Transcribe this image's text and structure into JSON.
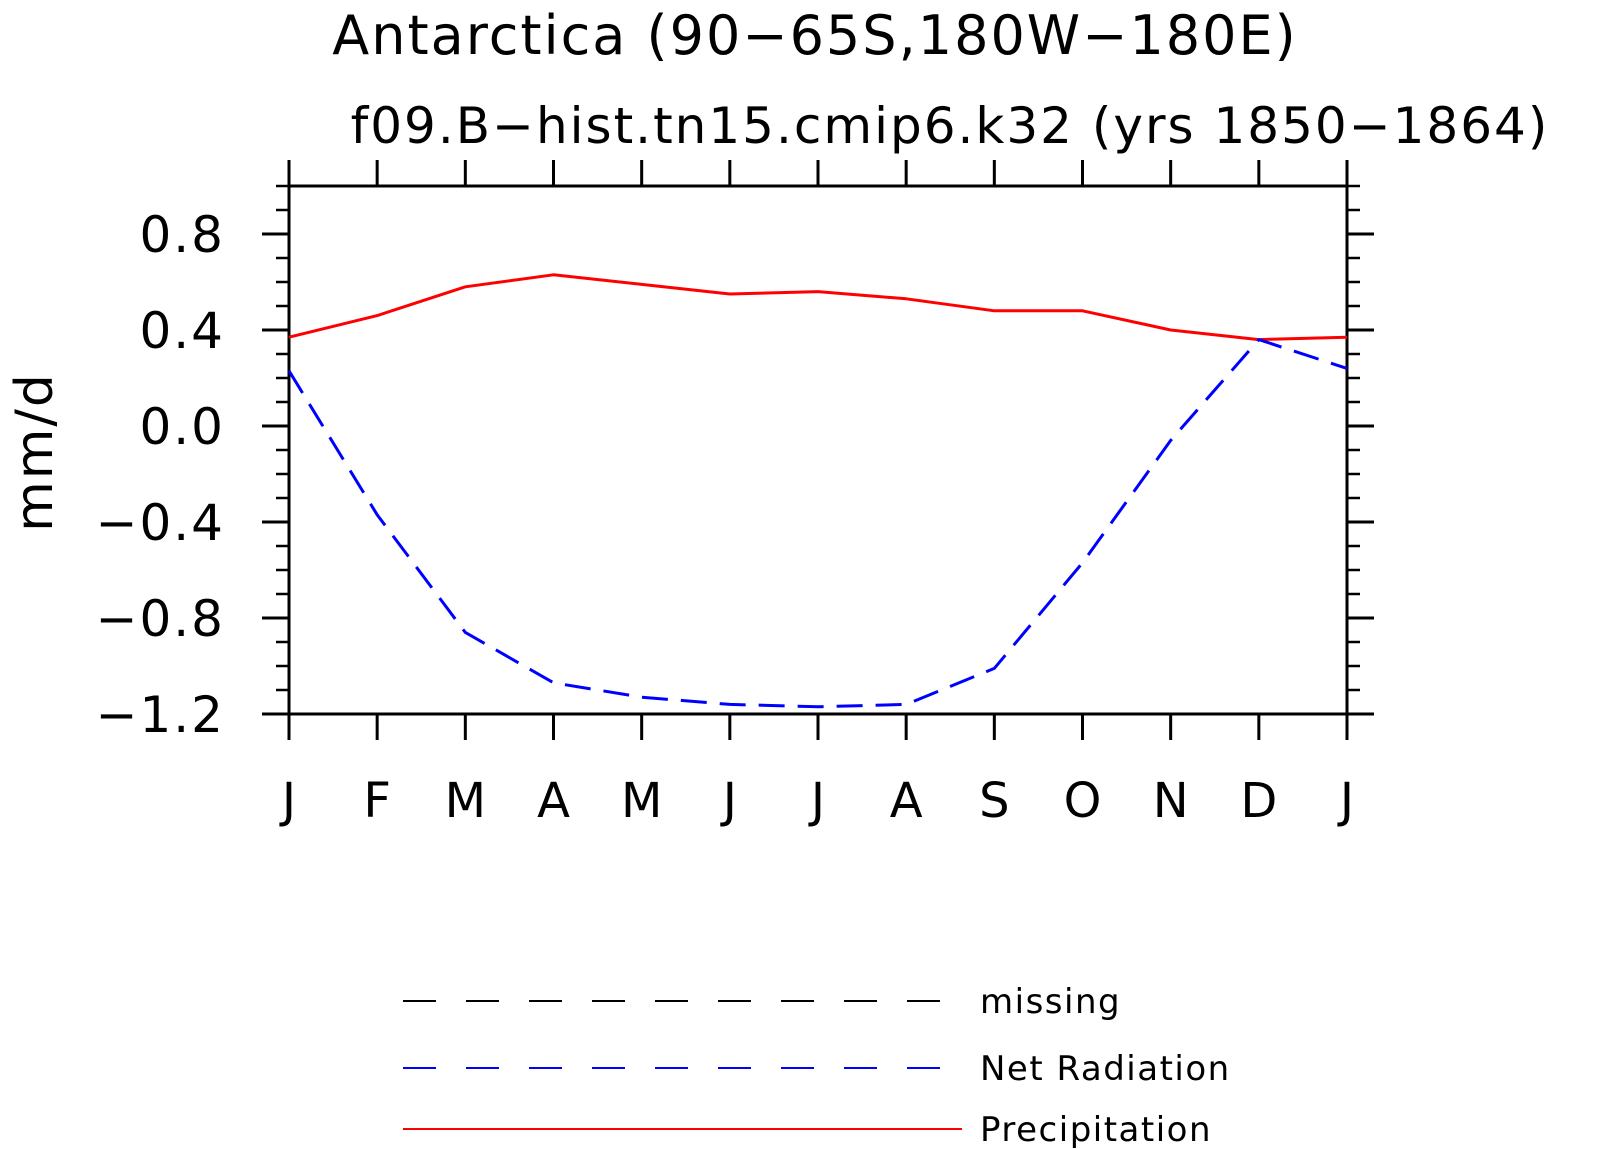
{
  "chart_data": {
    "type": "line",
    "title": "Antarctica (90−65S,180W−180E)",
    "subtitle": "f09.B−hist.tn15.cmip6.k32 (yrs 1850−1864)",
    "ylabel": "mm/d",
    "xlabel": "",
    "categories": [
      "J",
      "F",
      "M",
      "A",
      "M",
      "J",
      "J",
      "A",
      "S",
      "O",
      "N",
      "D",
      "J"
    ],
    "ylim": [
      -1.2,
      1.0
    ],
    "yticks": [
      0.8,
      0.4,
      0.0,
      -0.4,
      -0.8,
      -1.2
    ],
    "ytick_labels": [
      "0.8",
      "0.4",
      "0.0",
      "−0.4",
      "−0.8",
      "−1.2"
    ],
    "yminor_step": 0.1,
    "grid": false,
    "series": [
      {
        "name": "Precipitation",
        "color": "#ff0000",
        "style": "solid",
        "values": [
          0.37,
          0.46,
          0.58,
          0.63,
          0.59,
          0.55,
          0.56,
          0.53,
          0.48,
          0.48,
          0.4,
          0.36,
          0.37
        ]
      },
      {
        "name": "Net Radiation",
        "color": "#0000ff",
        "style": "dashed",
        "values": [
          0.23,
          -0.37,
          -0.86,
          -1.07,
          -1.13,
          -1.16,
          -1.17,
          -1.16,
          -1.01,
          -0.57,
          -0.06,
          0.36,
          0.24
        ]
      }
    ],
    "legend": {
      "position": "bottom",
      "entries": [
        {
          "label": "missing",
          "color": "#000000",
          "style": "dashed"
        },
        {
          "label": "Net Radiation",
          "color": "#0000ff",
          "style": "dashed"
        },
        {
          "label": "Precipitation",
          "color": "#ff0000",
          "style": "solid"
        }
      ]
    }
  }
}
